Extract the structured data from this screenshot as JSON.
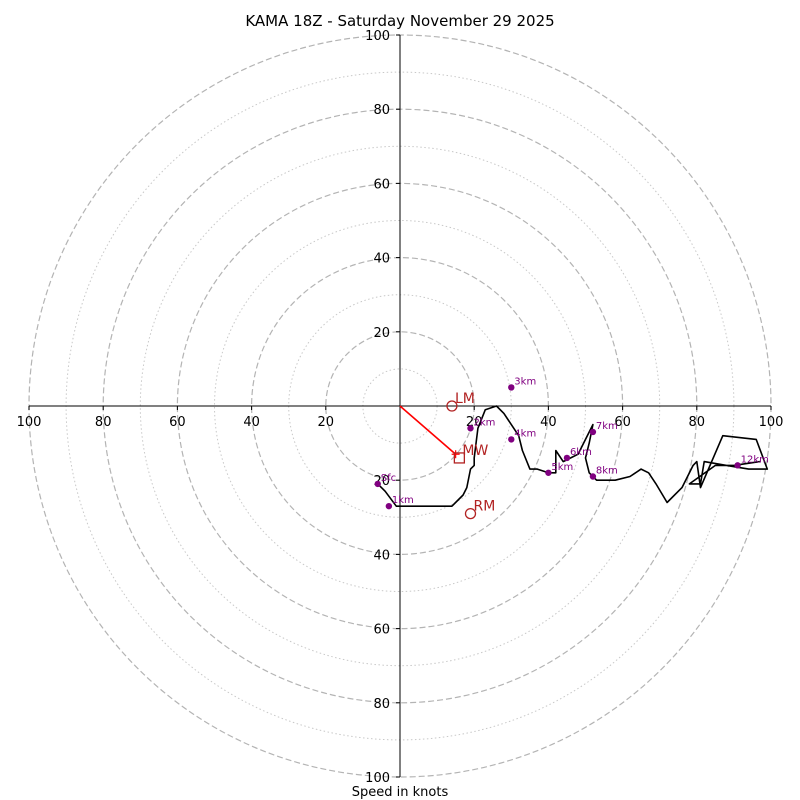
{
  "chart_data": {
    "type": "hodograph",
    "title": "KAMA 18Z - Saturday November 29 2025",
    "xlabel": "Speed in knots",
    "axis_range": [
      -100,
      100
    ],
    "x_tick_labels": [
      "100",
      "80",
      "60",
      "40",
      "20",
      "20",
      "40",
      "60",
      "80",
      "100"
    ],
    "x_tick_values": [
      -100,
      -80,
      -60,
      -40,
      -20,
      20,
      40,
      60,
      80,
      100
    ],
    "y_tick_labels": [
      "100",
      "80",
      "60",
      "40",
      "20",
      "20",
      "40",
      "60",
      "80",
      "100"
    ],
    "y_tick_values": [
      100,
      80,
      60,
      40,
      20,
      -20,
      -40,
      -60,
      -80,
      -100
    ],
    "major_rings": [
      20,
      40,
      60,
      80,
      100
    ],
    "minor_rings": [
      10,
      30,
      50,
      70,
      90
    ],
    "hodograph_trace": {
      "color": "#000000",
      "u": [
        -6,
        -4,
        -1,
        3,
        8,
        14,
        15,
        17,
        18,
        19,
        20,
        20,
        21,
        23,
        26,
        28,
        30,
        32,
        33,
        35,
        37,
        40,
        42,
        42,
        42,
        44,
        46,
        48,
        50,
        52,
        51,
        50,
        51,
        53,
        55,
        58,
        62,
        65,
        67,
        69,
        72,
        76,
        79,
        80,
        81,
        87,
        96,
        99,
        94,
        88,
        82,
        81,
        78,
        85,
        90,
        97
      ],
      "v": [
        -21,
        -23,
        -27,
        -27,
        -27,
        -27,
        -26,
        -24,
        -22,
        -17,
        -16,
        -14,
        -6,
        -1,
        0,
        -2,
        -5,
        -8,
        -12,
        -17,
        -17,
        -18,
        -18,
        -15,
        -12,
        -15,
        -14,
        -13,
        -9,
        -5,
        -10,
        -14,
        -18,
        -20,
        -20,
        -20,
        -19,
        -17,
        -18,
        -21,
        -26,
        -22,
        -16,
        -15,
        -22,
        -8,
        -9,
        -17,
        -17,
        -16,
        -15,
        -21,
        -21,
        -16,
        -16,
        -15
      ]
    },
    "height_markers": [
      {
        "label": "Sfc",
        "u": -6,
        "v": -21
      },
      {
        "label": "1km",
        "u": -3,
        "v": -27
      },
      {
        "label": "2km",
        "u": 19,
        "v": -6
      },
      {
        "label": "3km",
        "u": 30,
        "v": 5
      },
      {
        "label": "4km",
        "u": 30,
        "v": -9
      },
      {
        "label": "5km",
        "u": 40,
        "v": -18
      },
      {
        "label": "6km",
        "u": 45,
        "v": -14
      },
      {
        "label": "7km",
        "u": 52,
        "v": -7
      },
      {
        "label": "8km",
        "u": 52,
        "v": -19
      },
      {
        "label": "12km",
        "u": 91,
        "v": -16
      }
    ],
    "marker_color": "#800080",
    "mean_wind_vector": {
      "from": [
        0,
        0
      ],
      "to": [
        15,
        -13
      ],
      "color": "#ff0000"
    },
    "storm_motions": [
      {
        "label": "LM",
        "u": 14,
        "v": 0,
        "symbol": "circle"
      },
      {
        "label": "RM",
        "u": 19,
        "v": -29,
        "symbol": "circle"
      },
      {
        "label": "MW",
        "u": 16,
        "v": -14,
        "symbol": "square"
      }
    ],
    "storm_motion_color": "#b22222"
  }
}
